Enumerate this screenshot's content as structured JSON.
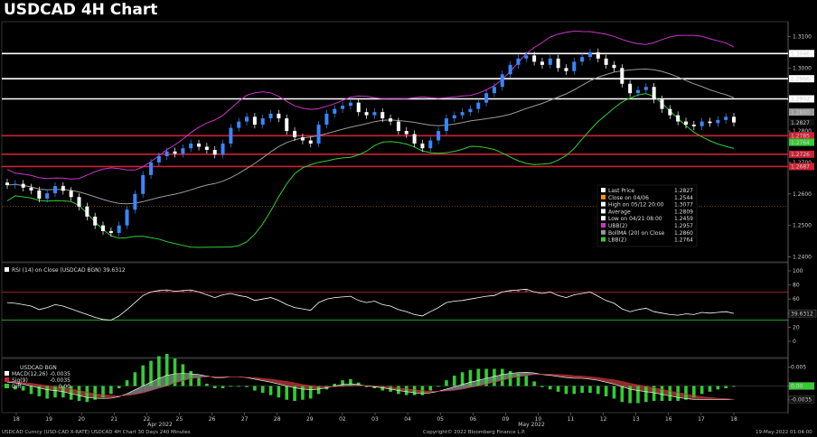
{
  "title": "USDCAD 4H Chart",
  "colors": {
    "background": "#000000",
    "up_candle": "#3a86ff",
    "down_candle": "#ffffff",
    "upper_band": "#cc33cc",
    "middle_band": "#999999",
    "lower_band": "#33cc33",
    "white_level": "#ffffff",
    "red_level": "#cc2233",
    "rsi_line": "#ffffff",
    "rsi_overbought": "#cc2233",
    "rsi_oversold": "#33cc33",
    "macd_hist": "#33cc33",
    "signal_fill": "#b03a3a"
  },
  "chart_data": [
    {
      "type": "candlestick",
      "panel": "price",
      "title": "USDCAD 4H Chart",
      "ylim": [
        1.239,
        1.313
      ],
      "y_ticks": [
        "1.3100",
        "1.3000",
        "1.2900",
        "1.2800",
        "1.2700",
        "1.2600",
        "1.2500",
        "1.2400"
      ],
      "x_ticks": [
        "18",
        "19",
        "20",
        "21",
        "22",
        "25",
        "26",
        "27",
        "28",
        "29",
        "02",
        "03",
        "04",
        "05",
        "06",
        "09",
        "10",
        "11",
        "12",
        "13",
        "16",
        "17",
        "18"
      ],
      "x_month_labels": [
        "Apr 2022",
        "May 2022"
      ],
      "close": [
        1.2628,
        1.2632,
        1.262,
        1.2611,
        1.2585,
        1.2602,
        1.2625,
        1.261,
        1.259,
        1.256,
        1.2528,
        1.25,
        1.2482,
        1.2476,
        1.25,
        1.255,
        1.26,
        1.266,
        1.27,
        1.272,
        1.2735,
        1.2728,
        1.2745,
        1.276,
        1.275,
        1.274,
        1.2725,
        1.276,
        1.281,
        1.283,
        1.2845,
        1.282,
        1.284,
        1.2855,
        1.284,
        1.28,
        1.278,
        1.277,
        1.276,
        1.282,
        1.2855,
        1.287,
        1.288,
        1.289,
        1.286,
        1.285,
        1.286,
        1.284,
        1.283,
        1.28,
        1.279,
        1.276,
        1.2745,
        1.277,
        1.28,
        1.284,
        1.285,
        1.286,
        1.287,
        1.289,
        1.292,
        1.294,
        1.298,
        1.301,
        1.303,
        1.304,
        1.302,
        1.301,
        1.303,
        1.3,
        1.299,
        1.302,
        1.3035,
        1.305,
        1.303,
        1.301,
        1.3,
        1.295,
        1.292,
        1.293,
        1.294,
        1.29,
        1.287,
        1.285,
        1.283,
        1.282,
        1.2815,
        1.283,
        1.2825,
        1.2835,
        1.2845,
        1.2827
      ],
      "last_price": 1.2827,
      "horizontal_levels": [
        {
          "value": 1.3046,
          "label": "1.3046",
          "color": "white"
        },
        {
          "value": 1.2966,
          "label": "1.2966",
          "color": "white"
        },
        {
          "value": 1.2902,
          "label": "1.2902",
          "color": "white"
        },
        {
          "value": 1.2785,
          "label": "1.2785",
          "color": "red"
        },
        {
          "value": 1.2726,
          "label": "1.2726",
          "color": "red"
        },
        {
          "value": 1.2687,
          "label": "1.2687",
          "color": "red"
        }
      ],
      "right_labels": [
        {
          "value": 1.3046,
          "label": "1.3046"
        },
        {
          "value": 1.2966,
          "label": "1.2966"
        },
        {
          "value": 1.2902,
          "label": "1.2902"
        },
        {
          "value": 1.286,
          "label": "1.2860"
        },
        {
          "value": 1.2827,
          "label": "1.2827"
        },
        {
          "value": 1.2785,
          "label": "1.2785"
        },
        {
          "value": 1.2764,
          "label": "1.2764"
        },
        {
          "value": 1.2726,
          "label": "1.2726"
        },
        {
          "value": 1.2687,
          "label": "1.2687"
        }
      ],
      "legend": [
        {
          "label": "Last Price",
          "value": "1.2827",
          "color": "#ffffff"
        },
        {
          "label": "Close on 04/06",
          "value": "1.2544",
          "color": "#ff9900"
        },
        {
          "label": "High on 05/12 20:00",
          "value": "1.3077",
          "color": "#ffffff"
        },
        {
          "label": "Average",
          "value": "1.2809",
          "color": "#ffffff"
        },
        {
          "label": "Low on 04/21 08:00",
          "value": "1.2459",
          "color": "#ffffff"
        },
        {
          "label": "UBB(2)",
          "value": "1.2957",
          "color": "#cc33cc"
        },
        {
          "label": "BollMA (20)  on Close",
          "value": "1.2860",
          "color": "#999999"
        },
        {
          "label": "LBB(2)",
          "value": "1.2764",
          "color": "#33cc33"
        }
      ]
    },
    {
      "type": "line",
      "panel": "rsi",
      "title": "RSI (14)  on Close (USDCAD BGN) 39.6312",
      "ylim": [
        0,
        100
      ],
      "y_ticks": [
        "100",
        "80",
        "60",
        "40",
        "20",
        "0"
      ],
      "levels": [
        70,
        30
      ],
      "last_value": "39.6312",
      "values": [
        55,
        54,
        52,
        50,
        45,
        48,
        52,
        50,
        46,
        42,
        38,
        34,
        31,
        30,
        36,
        45,
        55,
        65,
        70,
        72,
        73,
        71,
        72,
        73,
        70,
        66,
        62,
        66,
        68,
        65,
        63,
        58,
        60,
        62,
        58,
        52,
        48,
        46,
        44,
        55,
        60,
        62,
        63,
        64,
        58,
        55,
        57,
        52,
        50,
        45,
        42,
        38,
        36,
        42,
        48,
        55,
        57,
        58,
        60,
        62,
        64,
        65,
        70,
        72,
        73,
        74,
        70,
        68,
        70,
        65,
        62,
        66,
        68,
        70,
        64,
        58,
        54,
        46,
        42,
        45,
        47,
        42,
        40,
        38,
        37,
        39,
        38,
        41,
        40,
        41,
        42,
        39.6
      ]
    },
    {
      "type": "bar",
      "panel": "macd",
      "title": "USDCAD BGN",
      "series_legend": [
        {
          "name": "MACD(12,26)",
          "value": "-0.0035",
          "color": "#ffffff"
        },
        {
          "name": "Sig(9)",
          "value": "-0.0035",
          "color": "#cc2233"
        },
        {
          "name": "Diff",
          "value": "0.00",
          "color": "#33cc33"
        }
      ],
      "y_ticks": [
        "0.005",
        "0.00",
        "-0.0035"
      ],
      "ylim": [
        -0.0065,
        0.0065
      ],
      "macd": [
        0.001,
        0.0008,
        0.0005,
        0.0,
        -0.0005,
        -0.001,
        -0.0012,
        -0.0015,
        -0.002,
        -0.0025,
        -0.003,
        -0.0032,
        -0.0033,
        -0.0032,
        -0.0028,
        -0.002,
        -0.001,
        0.0,
        0.001,
        0.002,
        0.0028,
        0.0032,
        0.0033,
        0.0032,
        0.003,
        0.0026,
        0.0022,
        0.0022,
        0.0024,
        0.0024,
        0.0022,
        0.0018,
        0.0014,
        0.001,
        0.0005,
        0.0,
        -0.0005,
        -0.0008,
        -0.001,
        -0.0008,
        -0.0005,
        0.0,
        0.0004,
        0.0006,
        0.0004,
        0.0,
        -0.0002,
        -0.0005,
        -0.0008,
        -0.0012,
        -0.0015,
        -0.0018,
        -0.002,
        -0.0018,
        -0.0014,
        -0.0008,
        -0.0002,
        0.0004,
        0.001,
        0.0015,
        0.002,
        0.0025,
        0.003,
        0.0033,
        0.0035,
        0.0036,
        0.0034,
        0.003,
        0.0028,
        0.0025,
        0.0022,
        0.002,
        0.002,
        0.0018,
        0.0015,
        0.001,
        0.0005,
        -0.0002,
        -0.0008,
        -0.0012,
        -0.0015,
        -0.0018,
        -0.0022,
        -0.0026,
        -0.003,
        -0.0033,
        -0.0035,
        -0.0035,
        -0.0035,
        -0.0035,
        -0.0035,
        -0.0035
      ],
      "signal": [
        0.0012,
        0.0011,
        0.0009,
        0.0007,
        0.0004,
        0.0001,
        -0.0002,
        -0.0005,
        -0.0008,
        -0.0012,
        -0.0016,
        -0.002,
        -0.0023,
        -0.0025,
        -0.0026,
        -0.0025,
        -0.0022,
        -0.0018,
        -0.0012,
        -0.0006,
        0.0,
        0.0008,
        0.0014,
        0.0019,
        0.0022,
        0.0024,
        0.0024,
        0.0024,
        0.0024,
        0.0024,
        0.0023,
        0.0022,
        0.002,
        0.0018,
        0.0015,
        0.0012,
        0.0008,
        0.0004,
        0.0001,
        -0.0001,
        -0.0002,
        -0.0002,
        -0.0001,
        0.0,
        0.0001,
        0.0001,
        0.0,
        -0.0001,
        -0.0003,
        -0.0005,
        -0.0007,
        -0.001,
        -0.0012,
        -0.0014,
        -0.0014,
        -0.0013,
        -0.0011,
        -0.0008,
        -0.0004,
        0.0,
        0.0005,
        0.001,
        0.0015,
        0.002,
        0.0024,
        0.0027,
        0.003,
        0.0031,
        0.0031,
        0.003,
        0.0029,
        0.0027,
        0.0026,
        0.0024,
        0.0022,
        0.0019,
        0.0016,
        0.0012,
        0.0007,
        0.0003,
        -0.0001,
        -0.0005,
        -0.0009,
        -0.0013,
        -0.0017,
        -0.0021,
        -0.0025,
        -0.0028,
        -0.003,
        -0.0032,
        -0.0033,
        -0.0035
      ]
    }
  ],
  "footer": {
    "left": "USDCAD Curncy (USD-CAD X-RATE) USDCAD 4H Chart 30 Days 240 Minutes",
    "center": "Copyright© 2022 Bloomberg Finance L.P.",
    "right": "19-May-2022 01:04:00"
  }
}
